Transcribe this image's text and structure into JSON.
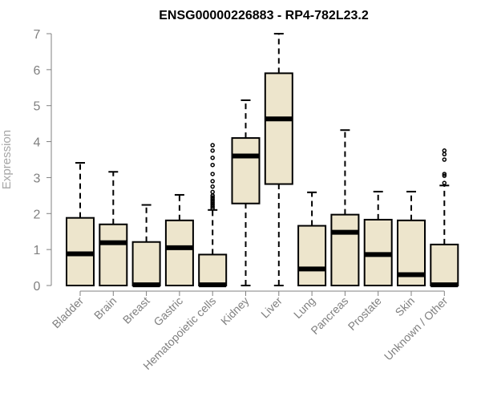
{
  "chart_data": {
    "type": "boxplot",
    "title": "ENSG00000226883 - RP4-782L23.2",
    "xlabel": "",
    "ylabel": "Expression",
    "ylim": [
      0,
      7
    ],
    "yticks": [
      "0",
      "1",
      "2",
      "3",
      "4",
      "5",
      "6",
      "7"
    ],
    "grid": false,
    "categories": [
      "Bladder",
      "Brain",
      "Breast",
      "Gastric",
      "Hematopoietic cells",
      "Kidney",
      "Liver",
      "Lung",
      "Pancreas",
      "Prostate",
      "Skin",
      "Unknown / Other"
    ],
    "boxes": [
      {
        "category": "Bladder",
        "whisker_low": 0,
        "q1": 0,
        "median": 0.88,
        "q3": 1.88,
        "whisker_high": 3.41,
        "outliers": []
      },
      {
        "category": "Brain",
        "whisker_low": 0,
        "q1": 0,
        "median": 1.19,
        "q3": 1.7,
        "whisker_high": 3.16,
        "outliers": []
      },
      {
        "category": "Breast",
        "whisker_low": 0,
        "q1": 0,
        "median": 0.02,
        "q3": 1.21,
        "whisker_high": 2.24,
        "outliers": []
      },
      {
        "category": "Gastric",
        "whisker_low": 0,
        "q1": 0,
        "median": 1.05,
        "q3": 1.81,
        "whisker_high": 2.52,
        "outliers": []
      },
      {
        "category": "Hematopoietic cells",
        "whisker_low": 0,
        "q1": 0,
        "median": 0.02,
        "q3": 0.86,
        "whisker_high": 2.1,
        "outliers": [
          2.15,
          2.2,
          2.25,
          2.3,
          2.35,
          2.4,
          2.45,
          2.5,
          2.6,
          2.75,
          2.9,
          3.1,
          3.35,
          3.55,
          3.75,
          3.9
        ]
      },
      {
        "category": "Kidney",
        "whisker_low": 0,
        "q1": 2.28,
        "median": 3.6,
        "q3": 4.1,
        "whisker_high": 5.15,
        "outliers": []
      },
      {
        "category": "Liver",
        "whisker_low": 0,
        "q1": 2.82,
        "median": 4.63,
        "q3": 5.9,
        "whisker_high": 7.0,
        "outliers": []
      },
      {
        "category": "Lung",
        "whisker_low": 0,
        "q1": 0,
        "median": 0.46,
        "q3": 1.66,
        "whisker_high": 2.59,
        "outliers": []
      },
      {
        "category": "Pancreas",
        "whisker_low": 0,
        "q1": 0,
        "median": 1.48,
        "q3": 1.97,
        "whisker_high": 4.32,
        "outliers": []
      },
      {
        "category": "Prostate",
        "whisker_low": 0,
        "q1": 0,
        "median": 0.86,
        "q3": 1.83,
        "whisker_high": 2.61,
        "outliers": []
      },
      {
        "category": "Skin",
        "whisker_low": 0,
        "q1": 0,
        "median": 0.3,
        "q3": 1.81,
        "whisker_high": 2.61,
        "outliers": []
      },
      {
        "category": "Unknown / Other",
        "whisker_low": 0,
        "q1": 0,
        "median": 0.02,
        "q3": 1.14,
        "whisker_high": 2.78,
        "outliers": [
          2.85,
          3.05,
          3.1,
          3.5,
          3.65,
          3.75
        ]
      }
    ],
    "colors": {
      "box_fill": "#ede5cc",
      "stroke": "#000000",
      "axis": "#808080",
      "tick_label": "#808080",
      "ylabel": "#a6a6a6"
    }
  }
}
